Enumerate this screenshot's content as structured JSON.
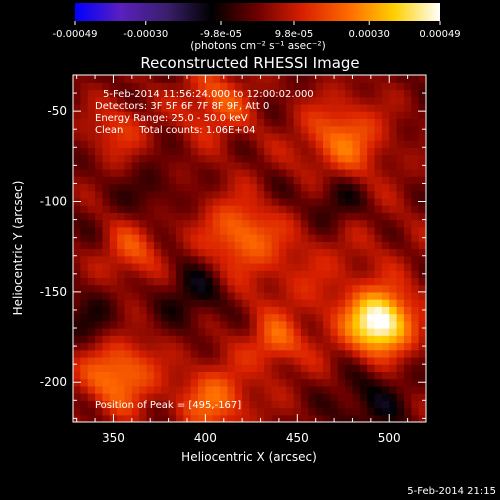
{
  "chart_data": {
    "type": "heatmap",
    "title": "Reconstructed RHESSI Image",
    "xlabel": "Heliocentric X (arcsec)",
    "ylabel": "Heliocentric Y (arcsec)",
    "xlim": [
      328,
      520
    ],
    "ylim": [
      -222,
      -30
    ],
    "xticks": [
      350,
      400,
      450,
      500
    ],
    "yticks": [
      -200,
      -150,
      -100,
      -50
    ],
    "colorbar": {
      "ticks": [
        -0.00049,
        -0.0003,
        -9.8e-05,
        9.8e-05,
        0.0003,
        0.00049
      ],
      "tick_labels": [
        "-0.00049",
        "-0.00030",
        "-9.8e-05",
        "9.8e-05",
        "0.00030",
        "0.00049"
      ],
      "range": [
        -0.00049,
        0.00049
      ],
      "colors": [
        "#0000ff",
        "#5a1fbf",
        "#3a1f6e",
        "#000000",
        "#6e0000",
        "#d92000",
        "#ff6a00",
        "#ffd000",
        "#ffffff"
      ],
      "units_label": "(photons cm⁻² s⁻¹ asec⁻²)"
    },
    "annotations": [
      "5-Feb-2014 11:56:24.000 to 12:00:02.000",
      "Detectors: 3F 5F 6F 7F 8F 9F, Att 0",
      "Energy Range: 25.0 - 50.0 keV",
      "Clean     Total counts: 1.06E+04",
      "Position of Peak = [495,-167]"
    ],
    "peak": {
      "x": 495,
      "y": -167,
      "value": 0.00049
    },
    "grid": false,
    "legend": "none"
  },
  "footer_timestamp": "5-Feb-2014 21:15"
}
